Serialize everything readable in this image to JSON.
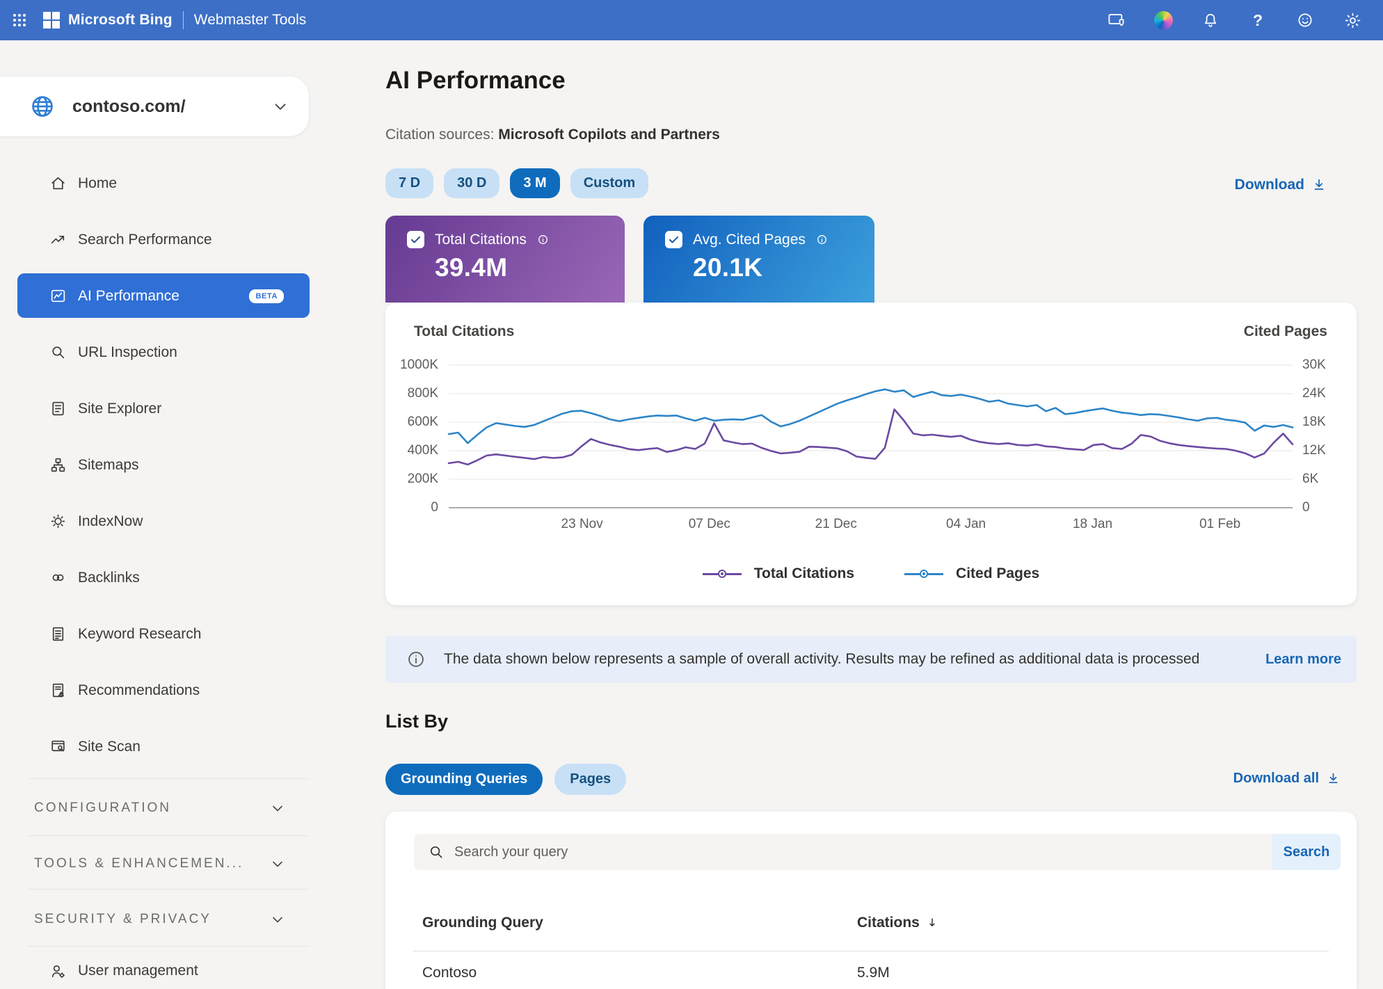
{
  "topbar": {
    "brand": "Microsoft Bing",
    "product": "Webmaster Tools",
    "icons": [
      "apps-grid",
      "monitor-shield",
      "copilot",
      "notifications",
      "help",
      "feedback",
      "settings"
    ]
  },
  "site_selector": {
    "site": "contoso.com/"
  },
  "sidebar": {
    "items": [
      {
        "label": "Home"
      },
      {
        "label": "Search Performance"
      },
      {
        "label": "AI Performance",
        "badge": "BETA",
        "selected": true
      },
      {
        "label": "URL Inspection"
      },
      {
        "label": "Site Explorer"
      },
      {
        "label": "Sitemaps"
      },
      {
        "label": "IndexNow"
      },
      {
        "label": "Backlinks"
      },
      {
        "label": "Keyword Research"
      },
      {
        "label": "Recommendations"
      },
      {
        "label": "Site Scan"
      }
    ],
    "sections": [
      {
        "label": "CONFIGURATION"
      },
      {
        "label": "TOOLS & ENHANCEMEN..."
      },
      {
        "label": "SECURITY & PRIVACY"
      }
    ],
    "footer_item": {
      "label": "User management"
    }
  },
  "header": {
    "title": "AI Performance",
    "citation_label": "Citation sources:",
    "citation_value": "Microsoft Copilots and Partners"
  },
  "filters": {
    "ranges": [
      "7 D",
      "30 D",
      "3 M",
      "Custom"
    ],
    "selected": "3 M",
    "download_label": "Download"
  },
  "metrics": [
    {
      "label": "Total Citations",
      "value": "39.4M",
      "checked": true
    },
    {
      "label": "Avg. Cited Pages",
      "value": "20.1K",
      "checked": true
    }
  ],
  "chart_data": {
    "type": "line",
    "title": "Total Citations",
    "right_title": "Cited Pages",
    "left_axis": {
      "label": "Total Citations",
      "ticks": [
        "0",
        "200K",
        "400K",
        "600K",
        "800K",
        "1000K"
      ],
      "max": 1000,
      "unit": "K"
    },
    "right_axis": {
      "label": "Cited Pages",
      "ticks": [
        "0",
        "6K",
        "12K",
        "18K",
        "24K",
        "30K"
      ],
      "max": 30,
      "unit": "K"
    },
    "x_ticks": [
      {
        "label": "23 Nov",
        "f": 0.158
      },
      {
        "label": "07 Dec",
        "f": 0.309
      },
      {
        "label": "21 Dec",
        "f": 0.459
      },
      {
        "label": "04 Jan",
        "f": 0.613
      },
      {
        "label": "18 Jan",
        "f": 0.763
      },
      {
        "label": "01 Feb",
        "f": 0.914
      }
    ],
    "series": [
      {
        "name": "Total Citations",
        "axis": "left",
        "color": "#6b4aa2",
        "unit": "K",
        "values": [
          312,
          322,
          303,
          332,
          366,
          374,
          366,
          357,
          350,
          341,
          356,
          349,
          353,
          372,
          430,
          482,
          458,
          441,
          428,
          411,
          404,
          412,
          418,
          391,
          404,
          424,
          412,
          450,
          592,
          472,
          458,
          446,
          450,
          420,
          398,
          381,
          386,
          392,
          428,
          426,
          421,
          416,
          396,
          359,
          350,
          343,
          420,
          690,
          612,
          520,
          508,
          512,
          504,
          497,
          505,
          478,
          462,
          452,
          447,
          452,
          440,
          436,
          444,
          430,
          426,
          415,
          410,
          405,
          440,
          446,
          418,
          412,
          448,
          510,
          500,
          470,
          452,
          440,
          432,
          426,
          420,
          415,
          412,
          400,
          382,
          352,
          380,
          455,
          520,
          445
        ]
      },
      {
        "name": "Cited Pages",
        "axis": "right",
        "color": "#2d85c8",
        "unit": "K",
        "values": [
          15.5,
          15.8,
          13.6,
          15.3,
          16.9,
          17.8,
          17.5,
          17.2,
          17.0,
          17.4,
          18.2,
          19.0,
          19.8,
          20.3,
          20.4,
          19.9,
          19.3,
          18.6,
          18.2,
          18.6,
          18.9,
          19.2,
          19.4,
          19.3,
          19.4,
          18.8,
          18.3,
          18.9,
          18.3,
          18.5,
          18.6,
          18.5,
          19.0,
          19.5,
          18.1,
          17.1,
          17.6,
          18.3,
          19.2,
          20.1,
          21.0,
          21.9,
          22.6,
          23.2,
          23.9,
          24.5,
          24.9,
          24.4,
          24.7,
          23.3,
          23.9,
          24.4,
          23.7,
          23.5,
          23.8,
          23.4,
          22.9,
          22.3,
          22.6,
          21.9,
          21.6,
          21.3,
          21.6,
          20.3,
          21.0,
          19.7,
          19.9,
          20.3,
          20.6,
          20.9,
          20.4,
          20.0,
          19.8,
          19.5,
          19.7,
          19.6,
          19.3,
          19.0,
          18.6,
          18.3,
          18.8,
          18.9,
          18.5,
          18.3,
          17.9,
          16.2,
          17.3,
          17.0,
          17.4,
          16.9
        ]
      }
    ],
    "legend": [
      "Total Citations",
      "Cited Pages"
    ],
    "legend_position": "bottom-center",
    "grid": "horizontal"
  },
  "banner": {
    "text": "The data shown below represents a sample of overall activity. Results may be refined as additional data is processed",
    "link_label": "Learn more"
  },
  "list_by": {
    "heading": "List By",
    "tabs": [
      "Grounding Queries",
      "Pages"
    ],
    "selected": "Grounding Queries",
    "download_all_label": "Download all"
  },
  "search": {
    "placeholder": "Search your query",
    "button_label": "Search"
  },
  "table": {
    "columns": [
      "Grounding Query",
      "Citations"
    ],
    "sort_column": "Citations",
    "sort_direction": "desc",
    "rows": [
      {
        "query": "Contoso",
        "citations": "5.9M"
      }
    ]
  },
  "colors": {
    "topbar": "#3d6fc6",
    "accent": "#0f6cbd",
    "sidebar_selected": "#2f6fd6",
    "pill_bg": "#c7e0f6",
    "pill_text": "#15517f",
    "purple_card_gradient": [
      "#653a92",
      "#9a67b6"
    ],
    "blue_card_gradient": [
      "#1160be",
      "#3da0dc"
    ],
    "line_total_citations": "#6b4aa2",
    "line_cited_pages": "#2d85c8",
    "link": "#1866b4",
    "banner_bg": "#e7eef9",
    "page_bg": "#f5f4f2"
  }
}
